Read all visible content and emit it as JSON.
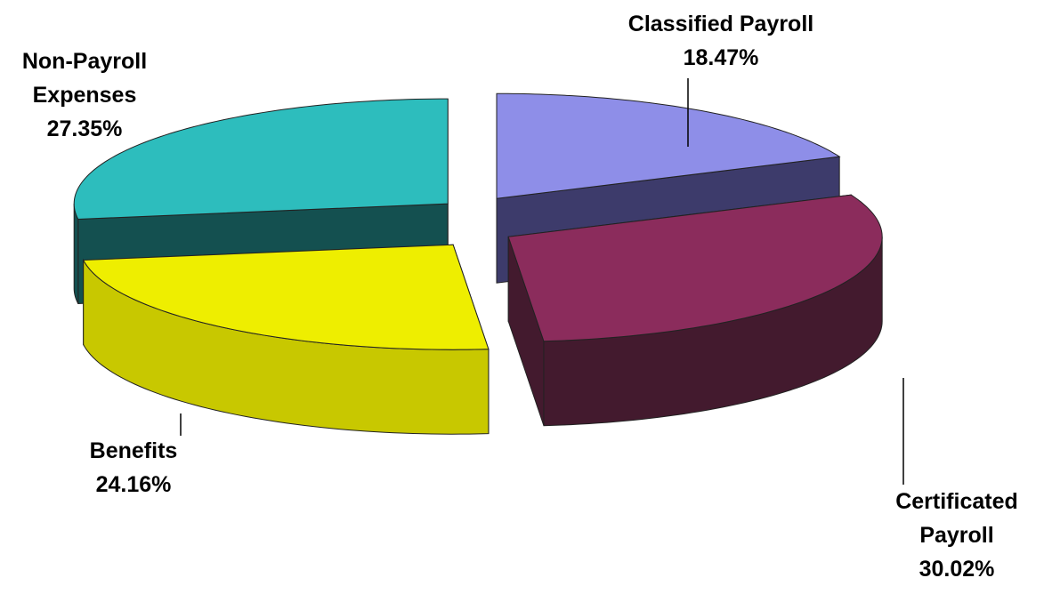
{
  "chart_data": {
    "type": "pie",
    "categories": [
      "Classified Payroll",
      "Certificated Payroll",
      "Benefits",
      "Non-Payroll Expenses"
    ],
    "values": [
      18.47,
      30.02,
      24.16,
      27.35
    ],
    "value_labels": [
      "18.47%",
      "30.02%",
      "24.16%",
      "27.35%"
    ],
    "colors": [
      "#8e8ee8",
      "#8b2c5c",
      "#eeee00",
      "#2dbdbd"
    ],
    "side_colors": [
      "#3d3b6b",
      "#431a2e",
      "#c8c800",
      "#145050"
    ]
  }
}
